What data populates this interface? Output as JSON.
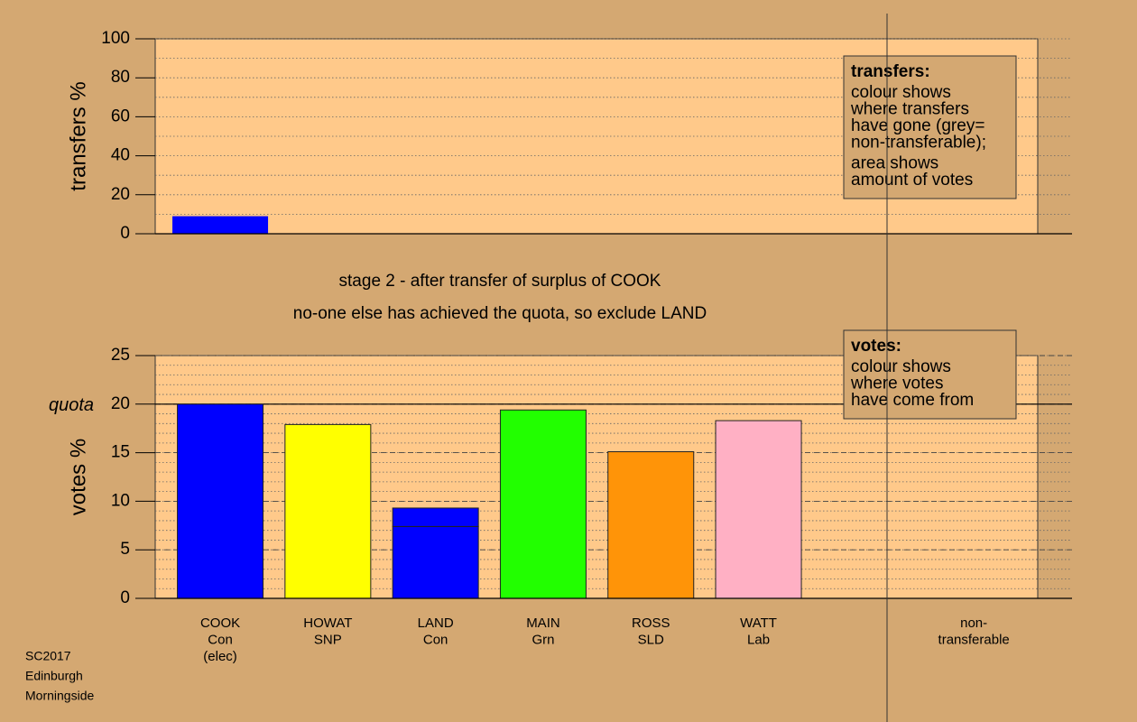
{
  "chart_data": [
    {
      "type": "bar",
      "ylabel": "transfers %",
      "ylim": [
        0,
        100
      ],
      "yticks": [
        0,
        20,
        40,
        60,
        80,
        100
      ],
      "minor_grid_step": 10,
      "values": [
        9
      ],
      "color": "#0000ff",
      "note": {
        "title": "transfers:",
        "paragraphs": [
          [
            "colour shows",
            "where transfers",
            "have gone (grey=",
            "non-transferable);"
          ],
          [
            "area shows",
            "amount of votes"
          ]
        ]
      }
    },
    {
      "type": "stacked-bar",
      "title_lines": [
        "stage 2 - after transfer of surplus of COOK",
        "no-one else has achieved the quota, so exclude LAND"
      ],
      "ylabel": "votes %",
      "ylim": [
        0,
        25
      ],
      "yticks": [
        0,
        5,
        10,
        15,
        20,
        25
      ],
      "minor_grid_step": 1,
      "quota": {
        "value": 20,
        "label": "quota"
      },
      "categories": [
        [
          "COOK",
          "Con",
          "(elec)"
        ],
        [
          "HOWAT",
          "SNP"
        ],
        [
          "LAND",
          "Con"
        ],
        [
          "MAIN",
          "Grn"
        ],
        [
          "ROSS",
          "SLD"
        ],
        [
          "WATT",
          "Lab"
        ],
        null,
        [
          "non-",
          "transferable"
        ]
      ],
      "segments": [
        [
          20
        ],
        [
          17.9
        ],
        [
          7.4,
          1.9
        ],
        [
          19.4
        ],
        [
          15.1
        ],
        [
          18.3
        ],
        null,
        [
          0
        ]
      ],
      "colors": [
        [
          "#0000ff"
        ],
        [
          "#ffff00"
        ],
        [
          "#0000ff",
          "#0000ff"
        ],
        [
          "#22ff00"
        ],
        [
          "#ff9408"
        ],
        [
          "#ffb0c4"
        ],
        null,
        [
          "#aaaaaa"
        ]
      ],
      "note": {
        "title": "votes:",
        "paragraphs": [
          [
            "colour shows",
            "where votes",
            "have come from"
          ]
        ]
      }
    }
  ],
  "footer": [
    "SC2017",
    "Edinburgh",
    "Morningside"
  ]
}
